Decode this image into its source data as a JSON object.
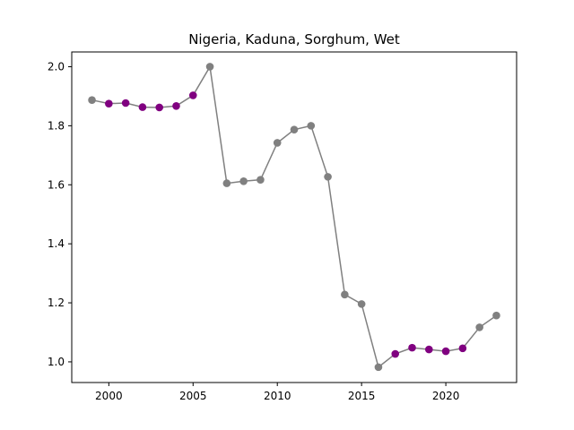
{
  "chart_data": {
    "type": "line",
    "title": "Nigeria, Kaduna, Sorghum, Wet",
    "xlabel": "",
    "ylabel": "",
    "xlim": [
      1997.8,
      2024.2
    ],
    "ylim": [
      0.93,
      2.05
    ],
    "x_ticks": [
      2000,
      2005,
      2010,
      2015,
      2020
    ],
    "y_ticks": [
      1.0,
      1.2,
      1.4,
      1.6,
      1.8,
      2.0
    ],
    "x_tick_labels": [
      "2000",
      "2005",
      "2010",
      "2015",
      "2020"
    ],
    "y_tick_labels": [
      "1.0",
      "1.2",
      "1.4",
      "1.6",
      "1.8",
      "2.0"
    ],
    "line_color": "#808080",
    "point_colors": {
      "gray": "#808080",
      "purple": "#800080"
    },
    "grid": false,
    "legend": "none",
    "series": [
      {
        "points": [
          {
            "x": 1999,
            "y": 1.887,
            "color": "gray"
          },
          {
            "x": 2000,
            "y": 1.875,
            "color": "purple"
          },
          {
            "x": 2001,
            "y": 1.877,
            "color": "purple"
          },
          {
            "x": 2002,
            "y": 1.863,
            "color": "purple"
          },
          {
            "x": 2003,
            "y": 1.862,
            "color": "purple"
          },
          {
            "x": 2004,
            "y": 1.867,
            "color": "purple"
          },
          {
            "x": 2005,
            "y": 1.903,
            "color": "purple"
          },
          {
            "x": 2006,
            "y": 2.0,
            "color": "gray"
          },
          {
            "x": 2007,
            "y": 1.605,
            "color": "gray"
          },
          {
            "x": 2008,
            "y": 1.612,
            "color": "gray"
          },
          {
            "x": 2009,
            "y": 1.617,
            "color": "gray"
          },
          {
            "x": 2010,
            "y": 1.742,
            "color": "gray"
          },
          {
            "x": 2011,
            "y": 1.787,
            "color": "gray"
          },
          {
            "x": 2012,
            "y": 1.8,
            "color": "gray"
          },
          {
            "x": 2013,
            "y": 1.627,
            "color": "gray"
          },
          {
            "x": 2014,
            "y": 1.228,
            "color": "gray"
          },
          {
            "x": 2015,
            "y": 1.196,
            "color": "gray"
          },
          {
            "x": 2016,
            "y": 0.982,
            "color": "gray"
          },
          {
            "x": 2017,
            "y": 1.027,
            "color": "purple"
          },
          {
            "x": 2018,
            "y": 1.048,
            "color": "purple"
          },
          {
            "x": 2019,
            "y": 1.042,
            "color": "purple"
          },
          {
            "x": 2020,
            "y": 1.036,
            "color": "purple"
          },
          {
            "x": 2021,
            "y": 1.046,
            "color": "purple"
          },
          {
            "x": 2022,
            "y": 1.117,
            "color": "gray"
          },
          {
            "x": 2023,
            "y": 1.157,
            "color": "gray"
          }
        ]
      }
    ]
  }
}
